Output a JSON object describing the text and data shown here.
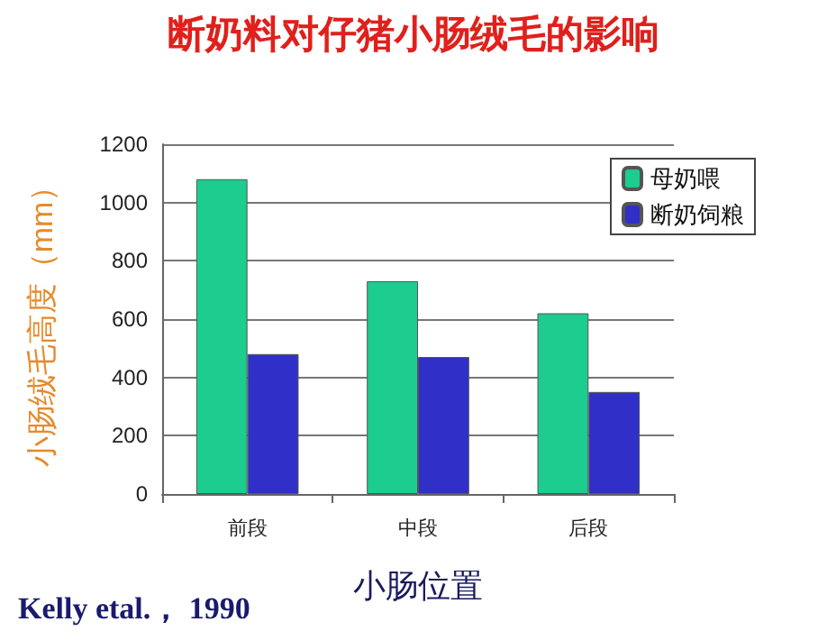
{
  "chart_data": {
    "type": "bar",
    "title": "断奶料对仔猪小肠绒毛的影响",
    "xlabel": "小肠位置",
    "ylabel": "小肠绒毛高度（mm）",
    "annotations": [
      "Kelly etal.， 1990"
    ],
    "categories": [
      "前段",
      "中段",
      "后段"
    ],
    "series": [
      {
        "name": "母奶喂",
        "color": "#1dcc8f",
        "values": [
          1080,
          730,
          620
        ]
      },
      {
        "name": "断奶饲粮",
        "color": "#3030c8",
        "values": [
          480,
          470,
          350
        ]
      }
    ],
    "ylim": [
      0,
      1200
    ],
    "yticks": [
      0,
      200,
      400,
      600,
      800,
      1000,
      1200
    ],
    "grid": "y",
    "legend": "top right"
  }
}
